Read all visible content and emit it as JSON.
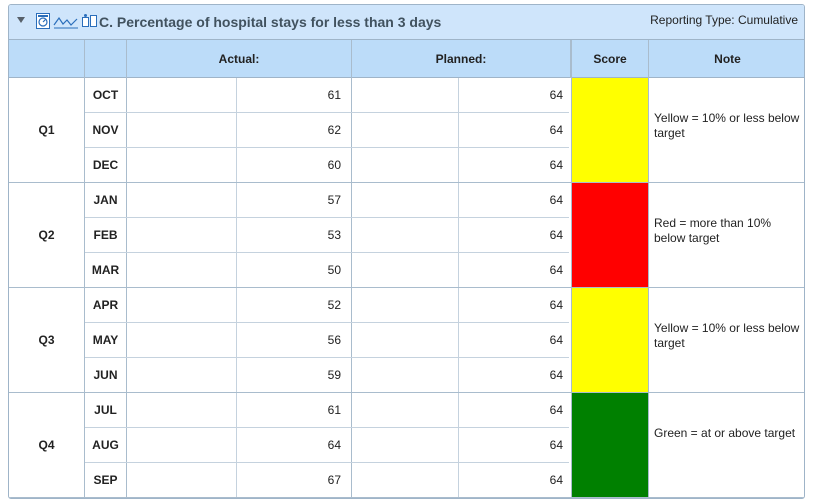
{
  "header": {
    "title": "C. Percentage of hospital stays for less than 3 days",
    "reporting_type": "Reporting Type: Cumulative",
    "icons": [
      "collapse-triangle-icon",
      "gauge-icon",
      "sparkline-chart-icon",
      "compare-icon"
    ]
  },
  "columns": {
    "actual": "Actual:",
    "planned": "Planned:",
    "score": "Score",
    "note": "Note"
  },
  "colors": {
    "yellow": "#ffff00",
    "red": "#ff0000",
    "green": "#008000"
  },
  "quarters": [
    {
      "label": "Q1",
      "score_color": "#ffff00",
      "note": "Yellow = 10% or less below target",
      "rows": [
        {
          "month": "OCT",
          "actual": "61",
          "planned": "64"
        },
        {
          "month": "NOV",
          "actual": "62",
          "planned": "64"
        },
        {
          "month": "DEC",
          "actual": "60",
          "planned": "64"
        }
      ]
    },
    {
      "label": "Q2",
      "score_color": "#ff0000",
      "note": "Red = more than 10% below target",
      "rows": [
        {
          "month": "JAN",
          "actual": "57",
          "planned": "64"
        },
        {
          "month": "FEB",
          "actual": "53",
          "planned": "64"
        },
        {
          "month": "MAR",
          "actual": "50",
          "planned": "64"
        }
      ]
    },
    {
      "label": "Q3",
      "score_color": "#ffff00",
      "note": "Yellow = 10% or less below target",
      "rows": [
        {
          "month": "APR",
          "actual": "52",
          "planned": "64"
        },
        {
          "month": "MAY",
          "actual": "56",
          "planned": "64"
        },
        {
          "month": "JUN",
          "actual": "59",
          "planned": "64"
        }
      ]
    },
    {
      "label": "Q4",
      "score_color": "#008000",
      "note": "Green = at or above target",
      "rows": [
        {
          "month": "JUL",
          "actual": "61",
          "planned": "64"
        },
        {
          "month": "AUG",
          "actual": "64",
          "planned": "64"
        },
        {
          "month": "SEP",
          "actual": "67",
          "planned": "64"
        }
      ]
    }
  ]
}
